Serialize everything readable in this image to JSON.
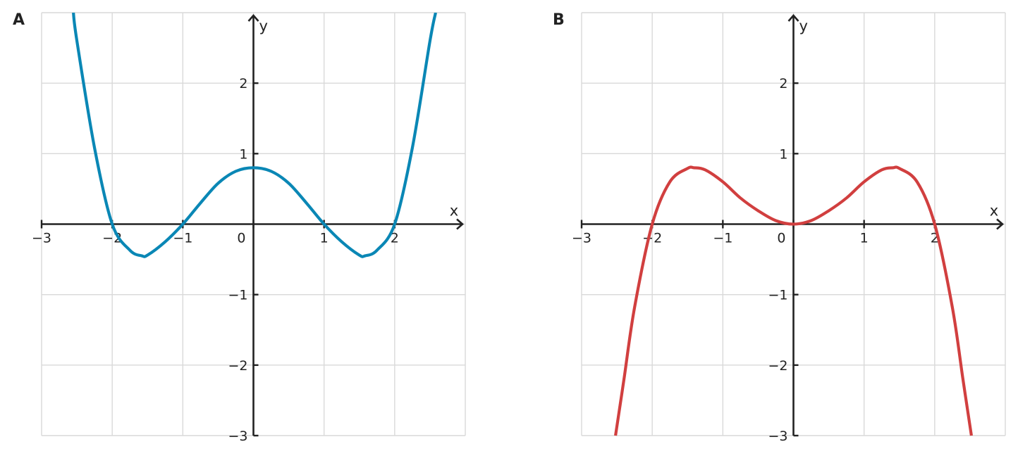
{
  "chart_data": [
    {
      "type": "line",
      "panel_label": "A",
      "xlabel": "x",
      "ylabel": "y",
      "xlim": [
        -3,
        3
      ],
      "ylim": [
        -3,
        3
      ],
      "grid": true,
      "x_ticks": [
        -3,
        -2,
        -1,
        0,
        1,
        2
      ],
      "x_tick_labels": [
        "−3",
        "−2",
        "−1",
        "0",
        "1",
        "2"
      ],
      "y_ticks": [
        -3,
        -2,
        -1,
        1,
        2
      ],
      "y_tick_labels": [
        "−3",
        "−2",
        "−1",
        "1",
        "2"
      ],
      "series": [
        {
          "color": "#0a87b5",
          "x": [
            -2.55,
            -2.5,
            -2.25,
            -2.0,
            -1.75,
            -1.58,
            -1.5,
            -1.25,
            -1.0,
            -0.75,
            -0.5,
            -0.25,
            0.0,
            0.25,
            0.5,
            0.75,
            1.0,
            1.25,
            1.5,
            1.58,
            1.75,
            2.0,
            2.25,
            2.5,
            2.58
          ],
          "y": [
            3.0,
            2.6,
            1.08,
            0.0,
            -0.37,
            -0.45,
            -0.44,
            -0.25,
            0.0,
            0.3,
            0.58,
            0.75,
            0.8,
            0.75,
            0.58,
            0.3,
            0.0,
            -0.25,
            -0.44,
            -0.45,
            -0.37,
            0.0,
            1.08,
            2.6,
            3.0
          ]
        }
      ]
    },
    {
      "type": "line",
      "panel_label": "B",
      "xlabel": "x",
      "ylabel": "y",
      "xlim": [
        -3,
        3
      ],
      "ylim": [
        -3,
        3
      ],
      "grid": true,
      "x_ticks": [
        -3,
        -2,
        -1,
        0,
        1,
        2
      ],
      "x_tick_labels": [
        "−3",
        "−2",
        "−1",
        "0",
        "1",
        "2"
      ],
      "y_ticks": [
        -3,
        -2,
        -1,
        1,
        2
      ],
      "y_tick_labels": [
        "−3",
        "−2",
        "−1",
        "1",
        "2"
      ],
      "series": [
        {
          "color": "#d13f3f",
          "x": [
            -2.52,
            -2.4,
            -2.25,
            -2.0,
            -1.75,
            -1.5,
            -1.41,
            -1.25,
            -1.0,
            -0.75,
            -0.5,
            -0.25,
            0.0,
            0.25,
            0.5,
            0.75,
            1.0,
            1.25,
            1.41,
            1.5,
            1.75,
            2.0,
            2.25,
            2.4,
            2.52
          ],
          "y": [
            -3.0,
            -2.2,
            -1.18,
            0.0,
            0.6,
            0.79,
            0.8,
            0.77,
            0.6,
            0.37,
            0.19,
            0.05,
            0.0,
            0.05,
            0.19,
            0.37,
            0.6,
            0.77,
            0.8,
            0.79,
            0.6,
            0.0,
            -1.18,
            -2.2,
            -3.0
          ]
        }
      ]
    }
  ]
}
